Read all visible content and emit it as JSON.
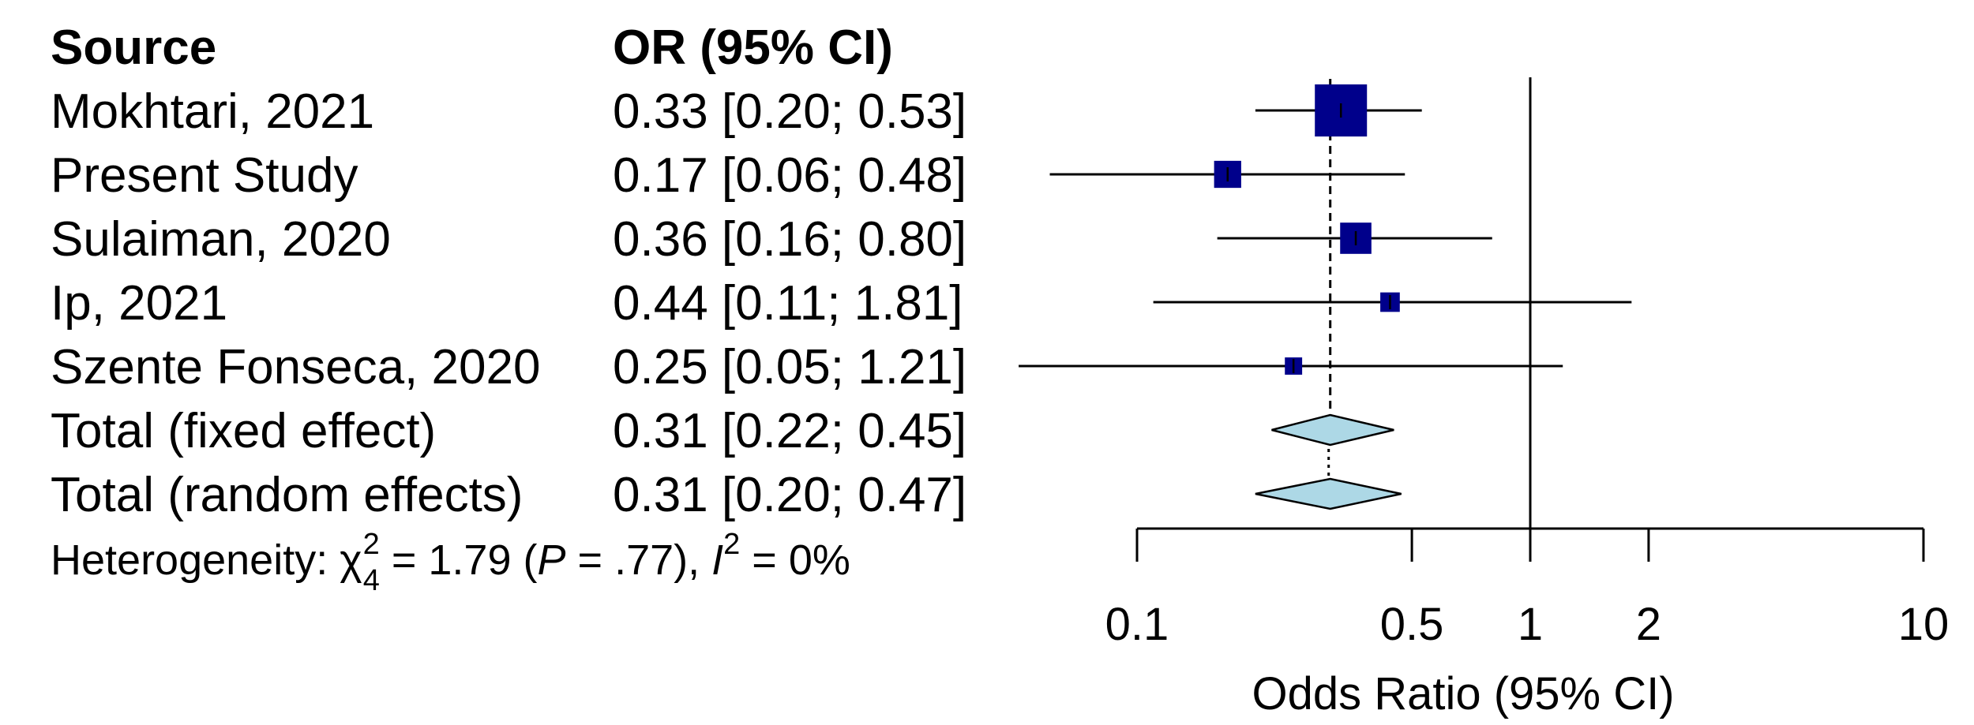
{
  "chart_data": {
    "type": "forest",
    "headers": {
      "source": "Source",
      "estimate": "OR (95% CI)"
    },
    "studies": [
      {
        "source": "Mokhtari, 2021",
        "label": "0.33 [0.20; 0.53]",
        "or": 0.33,
        "lower": 0.2,
        "upper": 0.53,
        "weight": 1.0
      },
      {
        "source": "Present Study",
        "label": "0.17 [0.06; 0.48]",
        "or": 0.17,
        "lower": 0.06,
        "upper": 0.48,
        "weight": 0.27
      },
      {
        "source": "Sulaiman, 2020",
        "label": "0.36 [0.16; 0.80]",
        "or": 0.36,
        "lower": 0.16,
        "upper": 0.8,
        "weight": 0.36
      },
      {
        "source": "Ip, 2021",
        "label": "0.44 [0.11; 1.81]",
        "or": 0.44,
        "lower": 0.11,
        "upper": 1.81,
        "weight": 0.14
      },
      {
        "source": "Szente Fonseca, 2020",
        "label": "0.25 [0.05; 1.21]",
        "or": 0.25,
        "lower": 0.05,
        "upper": 1.21,
        "weight": 0.11
      }
    ],
    "summaries": [
      {
        "source": "Total (fixed effect)",
        "label": "0.31 [0.22; 0.45]",
        "or": 0.31,
        "lower": 0.22,
        "upper": 0.45
      },
      {
        "source": "Total (random effects)",
        "label": "0.31 [0.20; 0.47]",
        "or": 0.31,
        "lower": 0.2,
        "upper": 0.47
      }
    ],
    "heterogeneity": {
      "prefix": "Heterogeneity: ",
      "chi": "χ",
      "chi_sub": "4",
      "chi_sup": "2",
      "chi_val": " = 1.79 (",
      "p": "P",
      "p_val": " = .77), ",
      "i": "I",
      "i_sup": "2",
      "i_val": " = 0%"
    },
    "x_axis": {
      "scale": "log",
      "range": [
        0.1,
        10
      ],
      "ticks": [
        0.1,
        0.5,
        1,
        2,
        10
      ],
      "tick_labels": [
        "0.1",
        "0.5",
        "1",
        "2",
        "10"
      ],
      "label": "Odds Ratio (95% CI)"
    },
    "reference_line": 1,
    "colors": {
      "study_box": "#00008b",
      "diamond_fill": "#add8e6",
      "line": "#000000"
    }
  }
}
